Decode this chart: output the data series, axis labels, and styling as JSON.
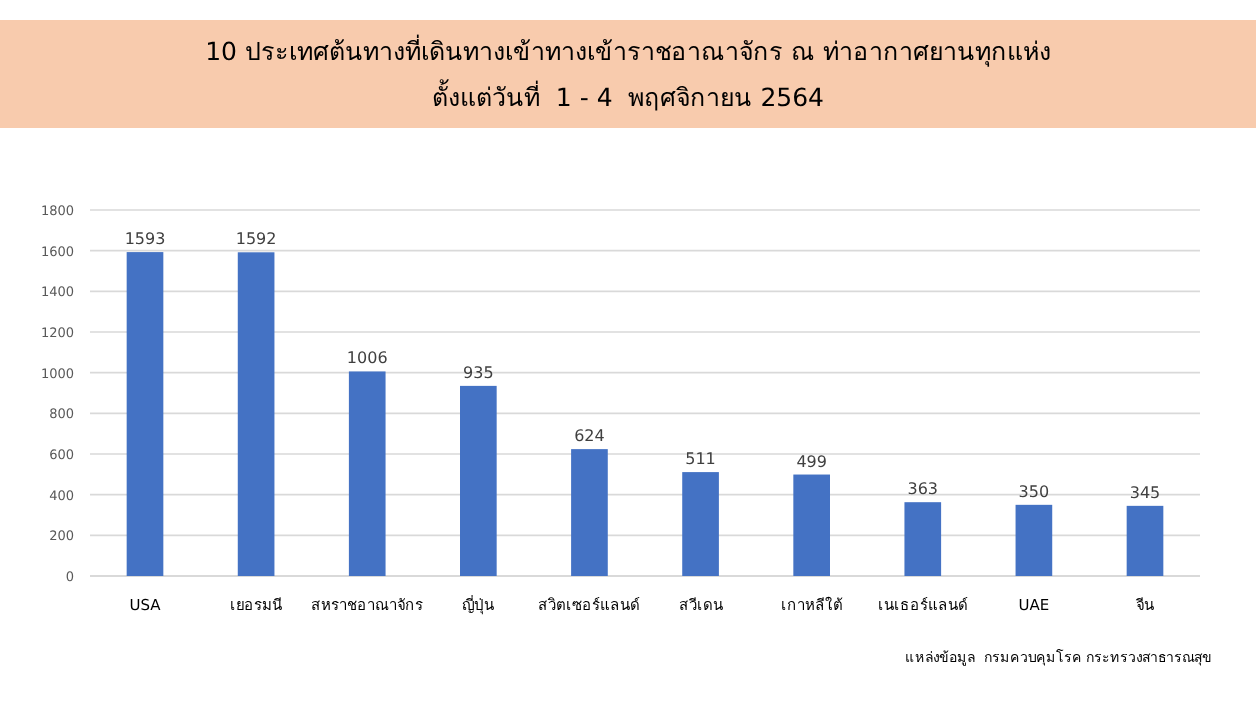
{
  "chart_data": {
    "type": "bar",
    "title": "10 ประเทศต้นทางที่เดินทางเข้าทางเข้าราชอาณาจักร ณ ท่าอากาศยานทุกแห่ง",
    "subtitle": "ตั้งแต่วันที่  1 - 4  พฤศจิกายน 2564",
    "categories": [
      "USA",
      "เยอรมนี",
      "สหราชอาณาจักร",
      "ญี่ปุ่น",
      "สวิตเซอร์แลนด์",
      "สวีเดน",
      "เกาหลีใต้",
      "เนเธอร์แลนด์",
      "UAE",
      "จีน"
    ],
    "values": [
      1593,
      1592,
      1006,
      935,
      624,
      511,
      499,
      363,
      350,
      345
    ],
    "color": "#4472c4",
    "data_labels": true,
    "grid": "y",
    "ylim": [
      0,
      1800
    ],
    "yticks": [
      0,
      200,
      400,
      600,
      800,
      1000,
      1200,
      1400,
      1600,
      1800
    ],
    "annotations": [
      "แหล่งข้อมูล  กรมควบคุมโรค กระทรวงสาธารณสุข"
    ]
  }
}
